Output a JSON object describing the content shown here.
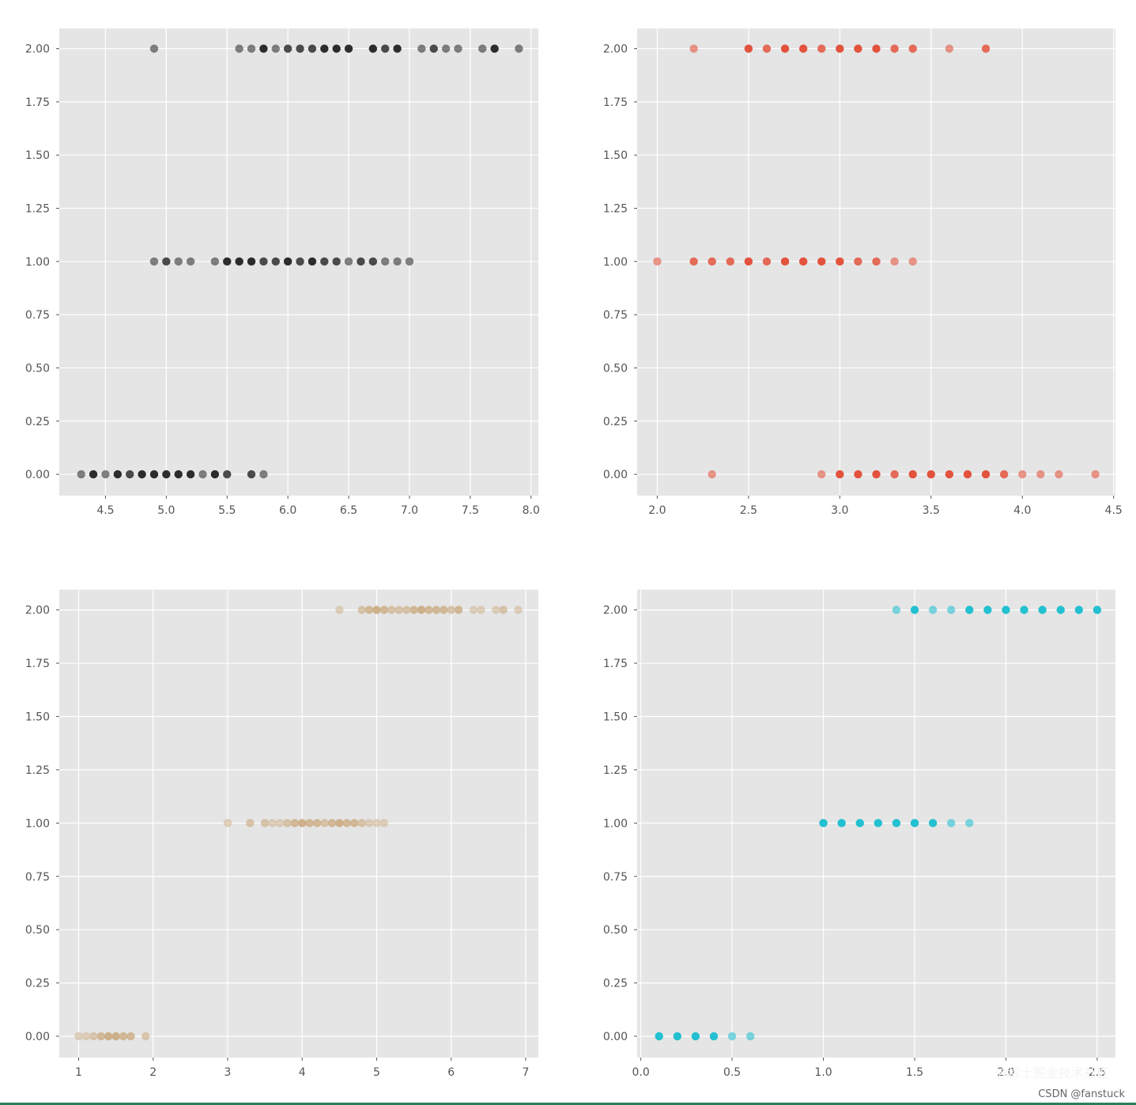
{
  "chart_data": [
    {
      "type": "scatter",
      "panel": "top-left",
      "xticks": [
        "4.5",
        "5.0",
        "5.5",
        "6.0",
        "6.5",
        "7.0",
        "7.5",
        "8.0"
      ],
      "xtick_values": [
        4.5,
        5.0,
        5.5,
        6.0,
        6.5,
        7.0,
        7.5,
        8.0
      ],
      "yticks": [
        "0.00",
        "0.25",
        "0.50",
        "0.75",
        "1.00",
        "1.25",
        "1.50",
        "1.75",
        "2.00"
      ],
      "xlim": [
        4.12,
        8.06
      ],
      "ylim": [
        -0.1,
        2.095
      ],
      "grid": true,
      "color": "#222222",
      "series": [
        {
          "y": 0,
          "x": [
            4.3,
            4.4,
            4.5,
            4.6,
            4.7,
            4.8,
            4.9,
            5.0,
            5.1,
            5.2,
            5.3,
            5.4,
            5.5,
            5.7,
            5.8
          ],
          "alpha": [
            0.55,
            0.95,
            0.55,
            0.95,
            0.8,
            0.95,
            0.95,
            0.95,
            0.95,
            0.95,
            0.55,
            0.95,
            0.8,
            0.8,
            0.55
          ]
        },
        {
          "y": 1,
          "x": [
            4.9,
            5.0,
            5.1,
            5.2,
            5.4,
            5.5,
            5.6,
            5.7,
            5.8,
            5.9,
            6.0,
            6.1,
            6.2,
            6.3,
            6.4,
            6.5,
            6.6,
            6.7,
            6.8,
            6.9,
            7.0
          ],
          "alpha": [
            0.55,
            0.8,
            0.55,
            0.55,
            0.55,
            0.95,
            0.95,
            0.95,
            0.8,
            0.8,
            0.95,
            0.8,
            0.95,
            0.8,
            0.8,
            0.55,
            0.8,
            0.8,
            0.55,
            0.55,
            0.55
          ]
        },
        {
          "y": 2,
          "x": [
            4.9,
            5.6,
            5.7,
            5.8,
            5.9,
            6.0,
            6.1,
            6.2,
            6.3,
            6.4,
            6.5,
            6.7,
            6.8,
            6.9,
            7.1,
            7.2,
            7.3,
            7.4,
            7.6,
            7.7,
            7.9
          ],
          "alpha": [
            0.55,
            0.55,
            0.55,
            0.95,
            0.55,
            0.8,
            0.8,
            0.8,
            0.95,
            0.95,
            0.95,
            0.95,
            0.8,
            0.95,
            0.55,
            0.8,
            0.55,
            0.55,
            0.55,
            0.95,
            0.55
          ]
        }
      ]
    },
    {
      "type": "scatter",
      "panel": "top-right",
      "xticks": [
        "2.0",
        "2.5",
        "3.0",
        "3.5",
        "4.0",
        "4.5"
      ],
      "xtick_values": [
        2.0,
        2.5,
        3.0,
        3.5,
        4.0,
        4.5
      ],
      "yticks": [
        "0.00",
        "0.25",
        "0.50",
        "0.75",
        "1.00",
        "1.25",
        "1.50",
        "1.75",
        "2.00"
      ],
      "xlim": [
        1.89,
        4.51
      ],
      "ylim": [
        -0.1,
        2.095
      ],
      "grid": true,
      "color": "#e24a33",
      "series": [
        {
          "y": 0,
          "x": [
            2.3,
            2.9,
            3.0,
            3.1,
            3.2,
            3.3,
            3.4,
            3.5,
            3.6,
            3.7,
            3.8,
            3.9,
            4.0,
            4.1,
            4.2,
            4.4
          ],
          "alpha": [
            0.55,
            0.55,
            0.95,
            0.95,
            0.95,
            0.8,
            0.95,
            0.95,
            0.95,
            0.95,
            0.95,
            0.8,
            0.55,
            0.55,
            0.55,
            0.55
          ]
        },
        {
          "y": 1,
          "x": [
            2.0,
            2.2,
            2.3,
            2.4,
            2.5,
            2.6,
            2.7,
            2.8,
            2.9,
            3.0,
            3.1,
            3.2,
            3.3,
            3.4
          ],
          "alpha": [
            0.55,
            0.8,
            0.8,
            0.8,
            0.95,
            0.8,
            0.95,
            0.95,
            0.95,
            0.95,
            0.8,
            0.8,
            0.55,
            0.55
          ]
        },
        {
          "y": 2,
          "x": [
            2.2,
            2.5,
            2.6,
            2.7,
            2.8,
            2.9,
            3.0,
            3.1,
            3.2,
            3.3,
            3.4,
            3.6,
            3.8
          ],
          "alpha": [
            0.55,
            0.95,
            0.8,
            0.95,
            0.95,
            0.8,
            0.95,
            0.95,
            0.95,
            0.8,
            0.8,
            0.55,
            0.8
          ]
        }
      ]
    },
    {
      "type": "scatter",
      "panel": "bottom-left",
      "xticks": [
        "1",
        "2",
        "3",
        "4",
        "5",
        "6",
        "7"
      ],
      "xtick_values": [
        1,
        2,
        3,
        4,
        5,
        6,
        7
      ],
      "yticks": [
        "0.00",
        "0.25",
        "0.50",
        "0.75",
        "1.00",
        "1.25",
        "1.50",
        "1.75",
        "2.00"
      ],
      "xlim": [
        0.74,
        7.17
      ],
      "ylim": [
        -0.1,
        2.095
      ],
      "grid": true,
      "color": "#c8a67a",
      "series": [
        {
          "y": 0,
          "x": [
            1.0,
            1.1,
            1.2,
            1.3,
            1.4,
            1.5,
            1.6,
            1.7,
            1.9
          ],
          "alpha": [
            0.45,
            0.45,
            0.55,
            0.75,
            0.85,
            0.85,
            0.75,
            0.75,
            0.55
          ]
        },
        {
          "y": 1,
          "x": [
            3.0,
            3.3,
            3.5,
            3.6,
            3.7,
            3.8,
            3.9,
            4.0,
            4.1,
            4.2,
            4.3,
            4.4,
            4.5,
            4.6,
            4.7,
            4.8,
            4.9,
            5.0,
            5.1
          ],
          "alpha": [
            0.45,
            0.6,
            0.6,
            0.45,
            0.45,
            0.6,
            0.75,
            0.85,
            0.75,
            0.75,
            0.6,
            0.75,
            0.85,
            0.75,
            0.75,
            0.6,
            0.45,
            0.45,
            0.45
          ]
        },
        {
          "y": 2,
          "x": [
            4.5,
            4.8,
            4.9,
            5.0,
            5.1,
            5.2,
            5.3,
            5.4,
            5.5,
            5.6,
            5.7,
            5.8,
            5.9,
            6.0,
            6.1,
            6.3,
            6.4,
            6.6,
            6.7,
            6.9
          ],
          "alpha": [
            0.45,
            0.6,
            0.75,
            0.85,
            0.75,
            0.6,
            0.6,
            0.6,
            0.75,
            0.85,
            0.75,
            0.75,
            0.75,
            0.6,
            0.75,
            0.45,
            0.45,
            0.45,
            0.6,
            0.45
          ]
        }
      ]
    },
    {
      "type": "scatter",
      "panel": "bottom-right",
      "xticks": [
        "0.0",
        "0.5",
        "1.0",
        "1.5",
        "2.0",
        "2.5"
      ],
      "xtick_values": [
        0.0,
        0.5,
        1.0,
        1.5,
        2.0,
        2.5
      ],
      "yticks": [
        "0.00",
        "0.25",
        "0.50",
        "0.75",
        "1.00",
        "1.25",
        "1.50",
        "1.75",
        "2.00"
      ],
      "xlim": [
        -0.02,
        2.6
      ],
      "ylim": [
        -0.1,
        2.095
      ],
      "grid": true,
      "color": "#17becf",
      "series": [
        {
          "y": 0,
          "x": [
            0.1,
            0.2,
            0.3,
            0.4,
            0.5,
            0.6
          ],
          "alpha": [
            0.95,
            0.95,
            0.95,
            0.95,
            0.55,
            0.55
          ]
        },
        {
          "y": 1,
          "x": [
            1.0,
            1.1,
            1.2,
            1.3,
            1.4,
            1.5,
            1.6,
            1.7,
            1.8
          ],
          "alpha": [
            0.95,
            0.95,
            0.95,
            0.95,
            0.95,
            0.95,
            0.95,
            0.55,
            0.55
          ]
        },
        {
          "y": 2,
          "x": [
            1.4,
            1.5,
            1.6,
            1.7,
            1.8,
            1.9,
            2.0,
            2.1,
            2.2,
            2.3,
            2.4,
            2.5
          ],
          "alpha": [
            0.55,
            0.95,
            0.55,
            0.55,
            0.95,
            0.95,
            0.95,
            0.95,
            0.95,
            0.95,
            0.95,
            0.95
          ]
        }
      ]
    }
  ],
  "watermark": {
    "main": "@稀土掘金技术社区",
    "sub": "CSDN @fanstuck"
  }
}
